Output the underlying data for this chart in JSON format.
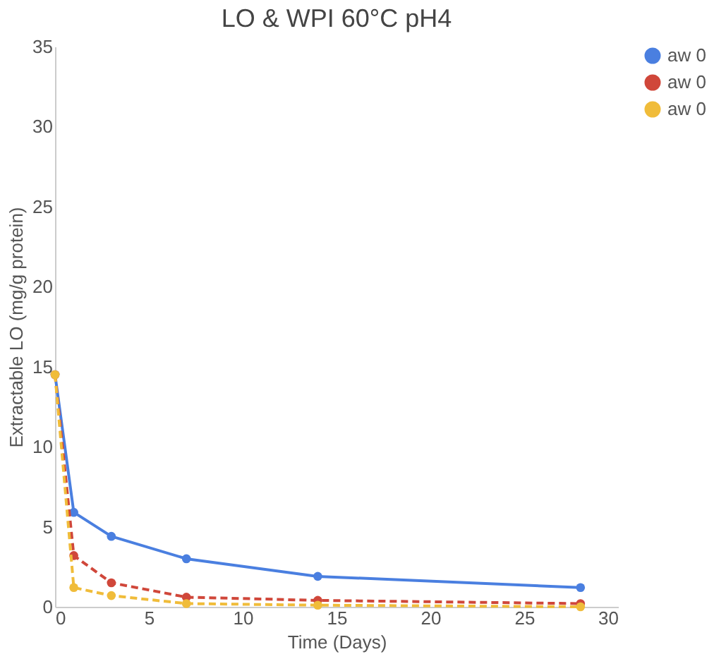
{
  "chart_data": {
    "type": "line",
    "title": "LO & WPI 60°C pH4",
    "xlabel": "Time (Days)",
    "ylabel": "Extractable LO (mg/g protein)",
    "x": [
      0,
      1,
      3,
      7,
      14,
      28
    ],
    "series": [
      {
        "name": "aw 0",
        "color": "#4a7fe0",
        "line_style": "solid",
        "values": [
          14.5,
          5.9,
          4.4,
          3.0,
          1.9,
          1.2
        ]
      },
      {
        "name": "aw 0",
        "color": "#d0473a",
        "line_style": "dashed",
        "values": [
          14.5,
          3.2,
          1.5,
          0.6,
          0.4,
          0.2
        ]
      },
      {
        "name": "aw 0",
        "color": "#f0bc3a",
        "line_style": "dashed",
        "values": [
          14.5,
          1.2,
          0.7,
          0.2,
          0.1,
          0.0
        ]
      }
    ],
    "xlim": [
      0,
      30
    ],
    "xticks": [
      0,
      5,
      10,
      15,
      20,
      25,
      30
    ],
    "ylim": [
      0,
      35
    ],
    "yticks": [
      0,
      5,
      10,
      15,
      20,
      25,
      30,
      35
    ],
    "grid": false,
    "legend": "right",
    "marker": "circle"
  }
}
